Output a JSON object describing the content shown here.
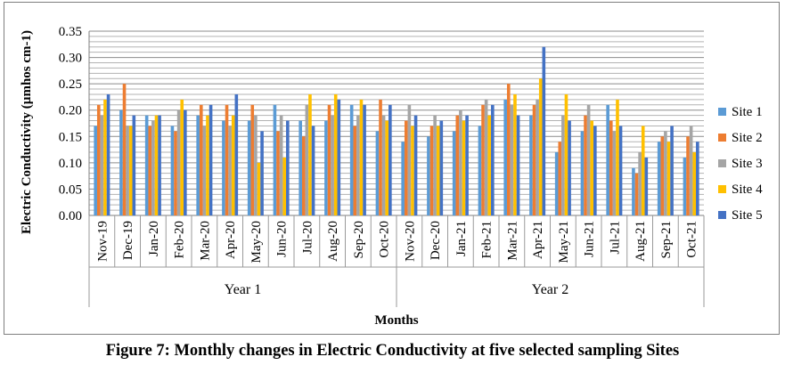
{
  "chart_data": {
    "type": "bar",
    "ylabel": "Electric Conductivity (µmhos cm-1)",
    "xlabel": "Months",
    "ylim": [
      0,
      0.35
    ],
    "ytick_step": 0.05,
    "grid": true,
    "legend_position": "right",
    "categories": [
      "Nov-19",
      "Dec-19",
      "Jan-20",
      "Feb-20",
      "Mar-20",
      "Apr-20",
      "May-20",
      "Jun-20",
      "Jul-20",
      "Aug-20",
      "Sep-20",
      "Oct-20",
      "Nov-20",
      "Dec-20",
      "Jan-21",
      "Feb-21",
      "Mar-21",
      "Apr-21",
      "May-21",
      "Jun-21",
      "Jul-21",
      "Aug-21",
      "Sep-21",
      "Oct-21"
    ],
    "groups": [
      {
        "label": "Year 1",
        "count": 12
      },
      {
        "label": "Year 2",
        "count": 12
      }
    ],
    "series": [
      {
        "name": "Site 1",
        "color": "#5b9bd5",
        "values": [
          0.17,
          0.2,
          0.19,
          0.17,
          0.19,
          0.18,
          0.18,
          0.21,
          0.18,
          0.18,
          0.21,
          0.16,
          0.14,
          0.15,
          0.16,
          0.17,
          0.22,
          0.19,
          0.12,
          0.16,
          0.21,
          0.09,
          0.14,
          0.11
        ]
      },
      {
        "name": "Site 2",
        "color": "#ed7d31",
        "values": [
          0.21,
          0.25,
          0.17,
          0.16,
          0.21,
          0.21,
          0.21,
          0.16,
          0.15,
          0.21,
          0.17,
          0.22,
          0.18,
          0.17,
          0.19,
          0.21,
          0.25,
          0.21,
          0.14,
          0.19,
          0.18,
          0.08,
          0.15,
          0.15
        ]
      },
      {
        "name": "Site 3",
        "color": "#a5a5a5",
        "values": [
          0.19,
          0.17,
          0.18,
          0.2,
          0.17,
          0.17,
          0.19,
          0.19,
          0.21,
          0.19,
          0.19,
          0.19,
          0.21,
          0.19,
          0.2,
          0.22,
          0.21,
          0.22,
          0.19,
          0.21,
          0.16,
          0.12,
          0.16,
          0.17
        ]
      },
      {
        "name": "Site 4",
        "color": "#ffc000",
        "values": [
          0.22,
          0.17,
          0.19,
          0.22,
          0.19,
          0.19,
          0.1,
          0.11,
          0.23,
          0.23,
          0.22,
          0.18,
          0.17,
          0.17,
          0.18,
          0.19,
          0.23,
          0.26,
          0.23,
          0.18,
          0.22,
          0.17,
          0.14,
          0.12
        ]
      },
      {
        "name": "Site 5",
        "color": "#4472c4",
        "values": [
          0.23,
          0.19,
          0.19,
          0.2,
          0.21,
          0.23,
          0.16,
          0.18,
          0.17,
          0.22,
          0.21,
          0.21,
          0.19,
          0.18,
          0.19,
          0.21,
          0.19,
          0.32,
          0.18,
          0.17,
          0.17,
          0.11,
          0.17,
          0.14
        ]
      }
    ]
  },
  "caption": "Figure 7: Monthly changes in Electric Conductivity at five selected sampling Sites"
}
